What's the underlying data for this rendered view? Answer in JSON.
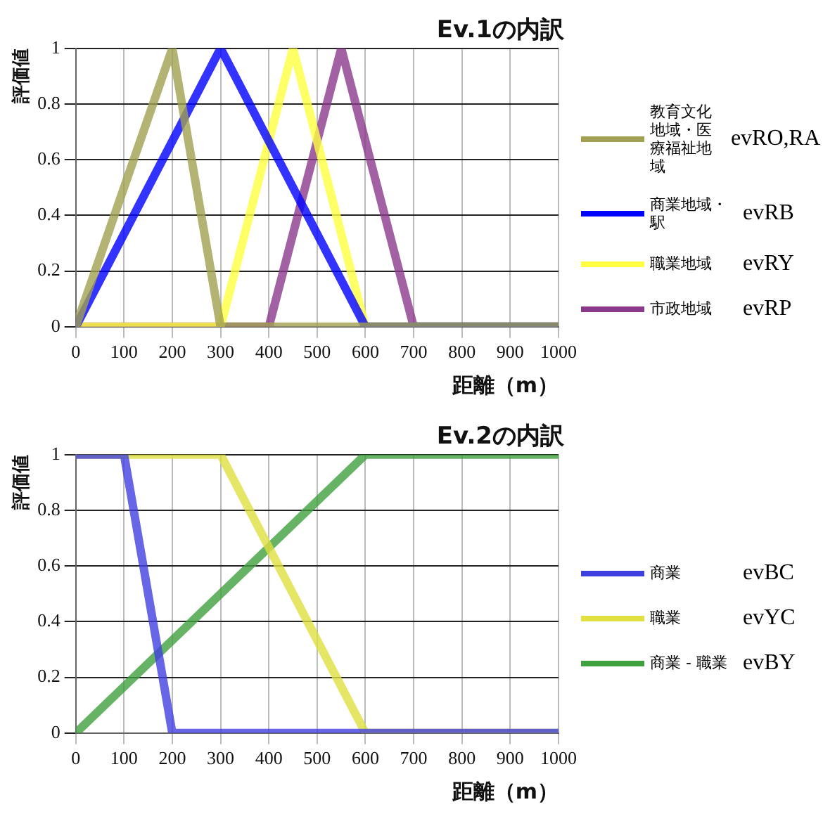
{
  "chart_data": [
    {
      "type": "line",
      "title": "Ev.1の内訳",
      "xlabel": "距離（m）",
      "ylabel": "評価値",
      "xlim": [
        0,
        1000
      ],
      "xticks": [
        0,
        100,
        200,
        300,
        400,
        500,
        600,
        700,
        800,
        900,
        1000
      ],
      "ylim": [
        0,
        1
      ],
      "yticks": [
        0,
        0.2,
        0.4,
        0.6,
        0.8,
        1
      ],
      "grid": true,
      "legend": "right",
      "marker": "none",
      "line_style": "solid",
      "annotations": [
        "evRO,RA",
        "evRB",
        "evRY",
        "evRP"
      ],
      "series": [
        {
          "name": "教育文化地域・医療福祉地域",
          "color": "#a0a050",
          "x": [
            0,
            200,
            300,
            1000
          ],
          "values": [
            0,
            1,
            0,
            0
          ]
        },
        {
          "name": "商業地域・駅",
          "color": "#0000ff",
          "x": [
            0,
            300,
            600,
            1000
          ],
          "values": [
            0,
            1,
            0,
            0
          ]
        },
        {
          "name": "職業地域",
          "color": "#ffff40",
          "x": [
            0,
            300,
            450,
            600,
            1000
          ],
          "values": [
            0,
            0,
            1,
            0,
            0
          ]
        },
        {
          "name": "市政地域",
          "color": "#8b3a8b",
          "x": [
            0,
            400,
            550,
            700,
            1000
          ],
          "values": [
            0,
            0,
            1,
            0,
            0
          ]
        }
      ]
    },
    {
      "type": "line",
      "title": "Ev.2の内訳",
      "xlabel": "距離（m）",
      "ylabel": "評価値",
      "xlim": [
        0,
        1000
      ],
      "xticks": [
        0,
        100,
        200,
        300,
        400,
        500,
        600,
        700,
        800,
        900,
        1000
      ],
      "ylim": [
        0,
        1
      ],
      "yticks": [
        0,
        0.2,
        0.4,
        0.6,
        0.8,
        1
      ],
      "grid": true,
      "legend": "right",
      "marker": "none",
      "line_style": "solid",
      "annotations": [
        "evBC",
        "evYC",
        "evBY"
      ],
      "series": [
        {
          "name": "商業",
          "color": "#4040e0",
          "x": [
            0,
            100,
            200,
            1000
          ],
          "values": [
            1,
            1,
            0,
            0
          ]
        },
        {
          "name": "職業",
          "color": "#e0e040",
          "x": [
            0,
            300,
            600,
            1000
          ],
          "values": [
            1,
            1,
            0,
            0
          ]
        },
        {
          "name": "商業 - 職業",
          "color": "#40a040",
          "x": [
            0,
            600,
            1000
          ],
          "values": [
            0,
            1,
            1
          ]
        }
      ]
    }
  ]
}
